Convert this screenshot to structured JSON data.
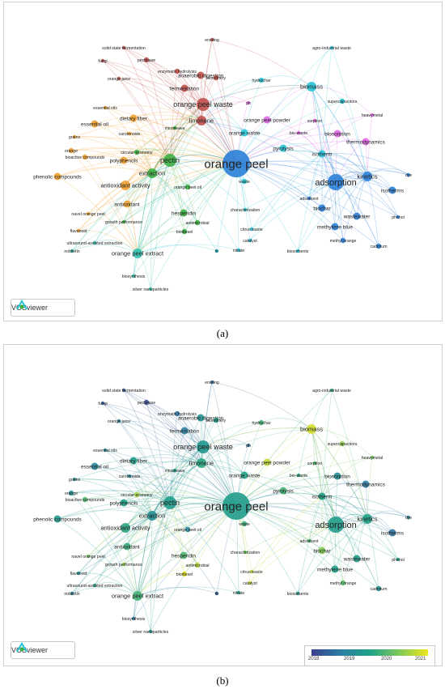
{
  "captions": {
    "a": "(a)",
    "b": "(b)"
  },
  "logo_text": "VOSviewer",
  "legend": {
    "ticks": [
      "2018",
      "2019",
      "2020",
      "2021"
    ]
  },
  "colors": {
    "cluster_red": "#c0504d",
    "cluster_orange": "#f0a030",
    "cluster_green": "#3cb043",
    "cluster_cyan": "#27c4d8",
    "cluster_blue": "#2b7fd8",
    "cluster_pink": "#e066e6",
    "cluster_teal": "#34c0b0"
  },
  "nodes": [
    {
      "label": "ensiling",
      "c": "red",
      "w": 1,
      "y0": 2018.5
    },
    {
      "label": "solid state fermentation",
      "c": "red",
      "w": 1,
      "y0": 2018.3
    },
    {
      "label": "fungi",
      "c": "red",
      "w": 1,
      "y0": 2018.4
    },
    {
      "label": "pectinase",
      "c": "red",
      "w": 2,
      "y0": 2018.2
    },
    {
      "label": "anaerobic digestion",
      "c": "red",
      "w": 3,
      "y0": 2019.2
    },
    {
      "label": "enzymatic hydrolysis",
      "c": "red",
      "w": 2,
      "y0": 2018.6
    },
    {
      "label": "biorefinery",
      "c": "red",
      "w": 2,
      "y0": 2019.4
    },
    {
      "label": "orange juice",
      "c": "red",
      "w": 1,
      "y0": 2019.0
    },
    {
      "label": "fermentation",
      "c": "red",
      "w": 3,
      "y0": 2018.8
    },
    {
      "label": "orange peel waste",
      "c": "red",
      "w": 5,
      "y0": 2019.3
    },
    {
      "label": "limonene",
      "c": "red",
      "w": 4,
      "y0": 2019.6
    },
    {
      "label": "essential oils",
      "c": "orange",
      "w": 1,
      "y0": 2019.1
    },
    {
      "label": "dietary fiber",
      "c": "orange",
      "w": 3,
      "y0": 2019.4
    },
    {
      "label": "essential oil",
      "c": "orange",
      "w": 3,
      "y0": 2018.9
    },
    {
      "label": "microwave",
      "c": "green",
      "w": 1,
      "y0": 2019.5
    },
    {
      "label": "carotenoids",
      "c": "orange",
      "w": 1,
      "y0": 2019.0
    },
    {
      "label": "grains",
      "c": "orange",
      "w": 1,
      "y0": 2019.3
    },
    {
      "label": "orange",
      "c": "orange",
      "w": 2,
      "y0": 2019.2
    },
    {
      "label": "circular economy",
      "c": "green",
      "w": 2,
      "y0": 2020.5
    },
    {
      "label": "bioactive compounds",
      "c": "orange",
      "w": 2,
      "y0": 2019.9
    },
    {
      "label": "polyphenols",
      "c": "orange",
      "w": 3,
      "y0": 2019.5
    },
    {
      "label": "pectin",
      "c": "green",
      "w": 5,
      "y0": 2019.4
    },
    {
      "label": "phenolic compounds",
      "c": "orange",
      "w": 3,
      "y0": 2019.3
    },
    {
      "label": "extraction",
      "c": "green",
      "w": 4,
      "y0": 2019.1
    },
    {
      "label": "antioxidant activity",
      "c": "orange",
      "w": 4,
      "y0": 2019.6
    },
    {
      "label": "orange peel oil",
      "c": "green",
      "w": 2,
      "y0": 2019.0
    },
    {
      "label": "antioxidant",
      "c": "orange",
      "w": 3,
      "y0": 2019.7
    },
    {
      "label": "hesperidin",
      "c": "green",
      "w": 3,
      "y0": 2019.9
    },
    {
      "label": "navel orange peel",
      "c": "orange",
      "w": 1,
      "y0": 2020.2
    },
    {
      "label": "growth performance",
      "c": "green",
      "w": 1,
      "y0": 2020.4
    },
    {
      "label": "antimicrobial",
      "c": "green",
      "w": 2,
      "y0": 2020.6
    },
    {
      "label": "flavonoid",
      "c": "orange",
      "w": 1,
      "y0": 2019.2
    },
    {
      "label": "biodiesel",
      "c": "green",
      "w": 2,
      "y0": 2020.9
    },
    {
      "label": "ultrasound-assisted extraction",
      "c": "teal",
      "w": 1,
      "y0": 2019.6
    },
    {
      "label": "nobiletin",
      "c": "teal",
      "w": 1,
      "y0": 2019.0
    },
    {
      "label": "orange peel extract",
      "c": "teal",
      "w": 4,
      "y0": 2019.8
    },
    {
      "label": "biosynthesis",
      "c": "teal",
      "w": 1,
      "y0": 2018.7
    },
    {
      "label": "silver nanoparticles",
      "c": "teal",
      "w": 1,
      "y0": 2019.3
    },
    {
      "label": "orange peel",
      "c": "blue",
      "w": 10,
      "y0": 2019.4
    },
    {
      "label": "orange waste",
      "c": "cyan",
      "w": 3,
      "y0": 2019.5
    },
    {
      "label": "orange peel powder",
      "c": "pink",
      "w": 3,
      "y0": 2020.7
    },
    {
      "label": "ph",
      "c": "pink",
      "w": 1,
      "y0": 2018.6
    },
    {
      "label": "hydrochar",
      "c": "cyan",
      "w": 2,
      "y0": 2019.8
    },
    {
      "label": "biomass",
      "c": "cyan",
      "w": 4,
      "y0": 2020.8
    },
    {
      "label": "agro-industrial waste",
      "c": "cyan",
      "w": 1,
      "y0": 2019.7
    },
    {
      "label": "supercapacitors",
      "c": "cyan",
      "w": 2,
      "y0": 2020.4
    },
    {
      "label": "heavymetal",
      "c": "pink",
      "w": 1,
      "y0": 2020.2
    },
    {
      "label": "sorption",
      "c": "pink",
      "w": 1,
      "y0": 2019.9
    },
    {
      "label": "bio-waste",
      "c": "pink",
      "w": 1,
      "y0": 2019.6
    },
    {
      "label": "biosorption",
      "c": "pink",
      "w": 3,
      "y0": 2019.1
    },
    {
      "label": "thermodynamics",
      "c": "pink",
      "w": 3,
      "y0": 2018.7
    },
    {
      "label": "pyrolysis",
      "c": "cyan",
      "w": 3,
      "y0": 2019.8
    },
    {
      "label": "isotherm",
      "c": "cyan",
      "w": 3,
      "y0": 2019.5
    },
    {
      "label": "adsorption",
      "c": "blue",
      "w": 6,
      "y0": 2019.4
    },
    {
      "label": "kinetics",
      "c": "blue",
      "w": 4,
      "y0": 2019.5
    },
    {
      "label": "dye",
      "c": "blue",
      "w": 1,
      "y0": 2018.8
    },
    {
      "label": "isotherms",
      "c": "blue",
      "w": 3,
      "y0": 2018.6
    },
    {
      "label": "waste",
      "c": "cyan",
      "w": 2,
      "y0": 2019.7
    },
    {
      "label": "adsorbent",
      "c": "blue",
      "w": 1,
      "y0": 2019.9
    },
    {
      "label": "characterization",
      "c": "cyan",
      "w": 1,
      "y0": 2020.2
    },
    {
      "label": "biochar",
      "c": "blue",
      "w": 3,
      "y0": 2020.3
    },
    {
      "label": "wastewater",
      "c": "blue",
      "w": 3,
      "y0": 2019.4
    },
    {
      "label": "phenol",
      "c": "blue",
      "w": 1,
      "y0": 2019.5
    },
    {
      "label": "citrus waste",
      "c": "cyan",
      "w": 1,
      "y0": 2020.6
    },
    {
      "label": "methylene blue",
      "c": "blue",
      "w": 3,
      "y0": 2019.5
    },
    {
      "label": "catalyst",
      "c": "cyan",
      "w": 1,
      "y0": 2020.8
    },
    {
      "label": "fir",
      "c": "cyan",
      "w": 1,
      "y0": 2018.5
    },
    {
      "label": "nitrate",
      "c": "cyan",
      "w": 1,
      "y0": 2019.5
    },
    {
      "label": "biosorbents",
      "c": "cyan",
      "w": 1,
      "y0": 2019.4
    },
    {
      "label": "methyl orange",
      "c": "blue",
      "w": 2,
      "y0": 2020.0
    },
    {
      "label": "cadmium",
      "c": "blue",
      "w": 2,
      "y0": 2019.2
    }
  ]
}
